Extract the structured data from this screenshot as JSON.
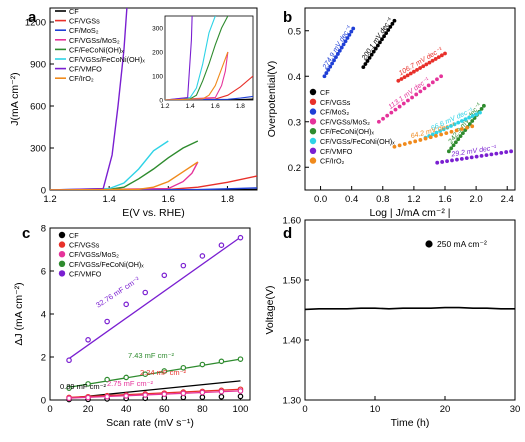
{
  "colors": {
    "black": "#000000",
    "red": "#e8302a",
    "blue": "#1f3fd6",
    "magenta": "#e5339a",
    "green": "#2e8b2e",
    "cyan": "#2ed3e6",
    "purple": "#7a1fd1",
    "orange": "#f08a1c"
  },
  "chart_data": [
    {
      "panel": "a",
      "type": "line",
      "xlabel": "E(V vs. RHE)",
      "ylabel": "J(mA cm⁻²)",
      "xlim": [
        1.2,
        1.9
      ],
      "ylim": [
        0,
        1300
      ],
      "xticks": [
        1.2,
        1.4,
        1.6,
        1.8
      ],
      "yticks": [
        0,
        300,
        600,
        900,
        1200
      ],
      "legend_position": "top-left",
      "series": [
        {
          "name": "CF",
          "color": "black",
          "x": [
            1.2,
            1.7,
            1.8,
            1.9
          ],
          "y": [
            0,
            1,
            2,
            4
          ]
        },
        {
          "name": "CF/VGSs",
          "color": "red",
          "x": [
            1.2,
            1.6,
            1.7,
            1.8,
            1.9
          ],
          "y": [
            0,
            4,
            20,
            55,
            100
          ]
        },
        {
          "name": "CF/MoS₂",
          "color": "blue",
          "x": [
            1.2,
            1.7,
            1.8,
            1.9
          ],
          "y": [
            0,
            3,
            8,
            15
          ]
        },
        {
          "name": "CF/VGSs/MoS₂",
          "color": "magenta",
          "x": [
            1.2,
            1.6,
            1.65,
            1.68,
            1.7
          ],
          "y": [
            0,
            10,
            60,
            120,
            200
          ]
        },
        {
          "name": "CF/FeCoNi(OH)ₓ",
          "color": "green",
          "x": [
            1.2,
            1.4,
            1.45,
            1.5,
            1.55,
            1.6,
            1.65,
            1.7
          ],
          "y": [
            0,
            5,
            20,
            80,
            150,
            230,
            300,
            350
          ]
        },
        {
          "name": "CF/VGSs/FeCoNi(OH)ₓ",
          "color": "cyan",
          "x": [
            1.2,
            1.4,
            1.45,
            1.5,
            1.55,
            1.6
          ],
          "y": [
            0,
            10,
            50,
            150,
            280,
            350
          ]
        },
        {
          "name": "CF/VMFO",
          "color": "purple",
          "x": [
            1.2,
            1.38,
            1.41,
            1.43,
            1.45,
            1.46
          ],
          "y": [
            0,
            10,
            250,
            600,
            1000,
            1300
          ]
        },
        {
          "name": "CF/IrO₂",
          "color": "orange",
          "x": [
            1.2,
            1.5,
            1.55,
            1.6,
            1.65,
            1.7
          ],
          "y": [
            0,
            5,
            20,
            60,
            130,
            200
          ]
        }
      ],
      "inset": {
        "xlim": [
          1.2,
          1.9
        ],
        "ylim": [
          0,
          350
        ],
        "xticks": [
          1.2,
          1.4,
          1.6,
          1.8
        ],
        "yticks": [
          0,
          100,
          200,
          300
        ]
      }
    },
    {
      "panel": "b",
      "type": "scatter",
      "xlabel": "Log | J/mA cm⁻² |",
      "ylabel": "Overpotential(V)",
      "xlim": [
        -0.2,
        2.5
      ],
      "ylim": [
        0.15,
        0.55
      ],
      "xticks": [
        0.0,
        0.4,
        0.8,
        1.2,
        1.6,
        2.0,
        2.4
      ],
      "yticks": [
        0.2,
        0.3,
        0.4,
        0.5
      ],
      "legend_position": "bottom-left",
      "series": [
        {
          "name": "CF",
          "color": "black",
          "x1": 0.55,
          "x2": 0.95,
          "y1": 0.42,
          "y2": 0.522,
          "label": "200.1 mV dec⁻¹"
        },
        {
          "name": "CF/VGSs",
          "color": "red",
          "x1": 1.0,
          "x2": 1.6,
          "y1": 0.39,
          "y2": 0.45,
          "label": "106.7 mV dec⁻¹"
        },
        {
          "name": "CF/MoS₂",
          "color": "blue",
          "x1": 0.05,
          "x2": 0.42,
          "y1": 0.4,
          "y2": 0.505,
          "label": "274.9 mV dec⁻¹"
        },
        {
          "name": "CF/VGSs/MoS₂",
          "color": "magenta",
          "x1": 0.75,
          "x2": 1.55,
          "y1": 0.3,
          "y2": 0.4,
          "label": "113.1 mV dec⁻¹"
        },
        {
          "name": "CF/FeCoNi(OH)ₓ",
          "color": "green",
          "x1": 1.65,
          "x2": 2.1,
          "y1": 0.235,
          "y2": 0.335,
          "label": "242.9 mV dec⁻¹"
        },
        {
          "name": "CF/VGSs/FeCoNi(OH)ₓ",
          "color": "cyan",
          "x1": 1.35,
          "x2": 2.05,
          "y1": 0.265,
          "y2": 0.32,
          "label": "66.6 mV dec⁻¹"
        },
        {
          "name": "CF/VMFO",
          "color": "purple",
          "x1": 1.5,
          "x2": 2.45,
          "y1": 0.21,
          "y2": 0.235,
          "label": "29.2 mV dec⁻¹"
        },
        {
          "name": "CF/IrO₂",
          "color": "orange",
          "x1": 0.95,
          "x2": 1.95,
          "y1": 0.245,
          "y2": 0.29,
          "label": "64.2 mV dec⁻¹"
        }
      ]
    },
    {
      "panel": "c",
      "type": "scatter",
      "xlabel": "Scan rate (mV s⁻¹)",
      "ylabel": "ΔJ (mA cm⁻²)",
      "xlim": [
        0,
        105
      ],
      "ylim": [
        0,
        8
      ],
      "xticks": [
        0,
        20,
        40,
        60,
        80,
        100
      ],
      "yticks": [
        0,
        2,
        4,
        6,
        8
      ],
      "legend_position": "top-left",
      "x": [
        10,
        20,
        30,
        40,
        50,
        60,
        70,
        80,
        90,
        100
      ],
      "series": [
        {
          "name": "CF",
          "color": "black",
          "y": [
            0.02,
            0.03,
            0.05,
            0.07,
            0.08,
            0.1,
            0.12,
            0.13,
            0.15,
            0.17
          ],
          "fit": [
            0.0,
            0.0089
          ],
          "label": "0.89 mF cm⁻²"
        },
        {
          "name": "CF/VGSs",
          "color": "red",
          "y": [
            0.12,
            0.15,
            0.2,
            0.23,
            0.28,
            0.32,
            0.37,
            0.4,
            0.45,
            0.5
          ],
          "fit": [
            0.08,
            0.0042
          ],
          "label": "2.24 mF cm⁻²"
        },
        {
          "name": "CF/VGSs/MoS₂",
          "color": "magenta",
          "y": [
            0.08,
            0.11,
            0.15,
            0.19,
            0.23,
            0.27,
            0.31,
            0.35,
            0.39,
            0.42
          ],
          "fit": [
            0.05,
            0.00375
          ],
          "label": "2.75 mF cm⁻²"
        },
        {
          "name": "CF/VGSs/FeCoNi(OH)ₓ",
          "color": "green",
          "y": [
            0.55,
            0.75,
            0.95,
            1.05,
            1.2,
            1.35,
            1.5,
            1.65,
            1.8,
            1.9
          ],
          "fit": [
            0.45,
            0.0145
          ],
          "label": "7.43 mF cm⁻²"
        },
        {
          "name": "CF/VMFO",
          "color": "purple",
          "y": [
            1.85,
            2.8,
            3.65,
            4.45,
            5.0,
            5.8,
            6.25,
            6.7,
            7.2,
            7.55
          ],
          "fit": [
            1.3,
            0.0627
          ],
          "label": "32.76 mF cm⁻²"
        }
      ]
    },
    {
      "panel": "d",
      "type": "line",
      "xlabel": "Time (h)",
      "ylabel": "Voltage(V)",
      "xlim": [
        0,
        30
      ],
      "ylim": [
        1.3,
        1.6
      ],
      "xticks": [
        0,
        10,
        20,
        30
      ],
      "yticks": [
        1.3,
        1.4,
        1.5,
        1.6
      ],
      "legend_position": "top-right",
      "series": [
        {
          "name": "250 mA cm⁻²",
          "color": "black",
          "x": [
            0,
            2,
            4,
            6,
            8,
            10,
            12,
            14,
            16,
            18,
            20,
            22,
            24,
            26,
            28,
            30
          ],
          "y": [
            1.451,
            1.452,
            1.452,
            1.452,
            1.453,
            1.453,
            1.452,
            1.453,
            1.453,
            1.453,
            1.454,
            1.454,
            1.453,
            1.453,
            1.452,
            1.452
          ]
        }
      ]
    }
  ]
}
